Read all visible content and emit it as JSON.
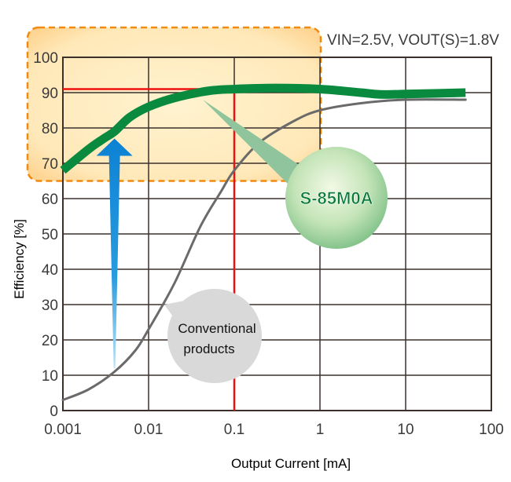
{
  "chart_data": {
    "type": "line",
    "title": "",
    "condition_label": "VIN=2.5V, VOUT(S)=1.8V",
    "xlabel": "Output  Current [mA]",
    "ylabel": "Efficiency [%]",
    "x_scale": "log",
    "xlim": [
      0.001,
      100
    ],
    "ylim": [
      0,
      100
    ],
    "x_ticks": [
      "0.001",
      "0.01",
      "0.1",
      "1",
      "10",
      "100"
    ],
    "y_ticks": [
      "0",
      "10",
      "20",
      "30",
      "40",
      "50",
      "60",
      "70",
      "80",
      "90",
      "100"
    ],
    "grid": true,
    "series": [
      {
        "name": "S-85M0A",
        "color": "#0a8a3e",
        "x": [
          0.001,
          0.002,
          0.003,
          0.004,
          0.006,
          0.01,
          0.02,
          0.05,
          0.1,
          0.3,
          1,
          3,
          5,
          10,
          50
        ],
        "y": [
          68,
          74,
          77,
          79,
          83,
          86,
          88.5,
          90.5,
          91,
          91.3,
          91,
          90,
          89.5,
          89.6,
          90
        ]
      },
      {
        "name": "Conventional products",
        "color": "#6a6a6a",
        "x": [
          0.001,
          0.002,
          0.004,
          0.007,
          0.01,
          0.02,
          0.04,
          0.07,
          0.1,
          0.2,
          0.5,
          1,
          3,
          10,
          50
        ],
        "y": [
          3,
          6,
          11,
          17,
          23,
          36,
          52,
          62,
          68,
          76,
          82,
          85,
          87,
          88,
          88
        ]
      }
    ],
    "annotations": {
      "product_label": "S-85M0A",
      "conventional_label_line1": "Conventional",
      "conventional_label_line2": "products",
      "reference_x": 0.1,
      "reference_y": 91,
      "highlight_region": {
        "x": [
          0.001,
          1
        ],
        "y": [
          65,
          100
        ]
      },
      "arrow": {
        "x": 0.004,
        "from_y": 12,
        "to_y": 77
      }
    }
  }
}
